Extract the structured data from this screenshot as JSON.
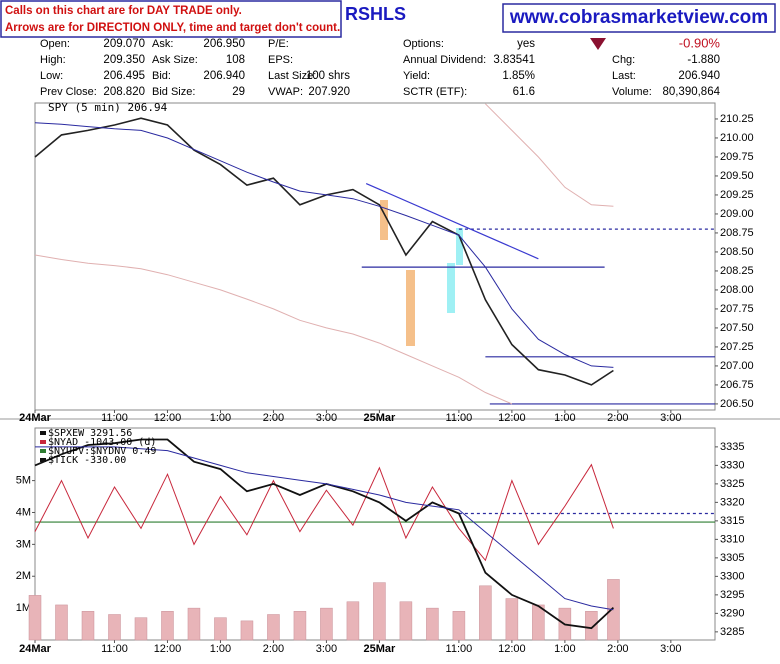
{
  "banner": {
    "notice": [
      "Calls on this chart are for DAY TRADE only.",
      "Arrows are for DIRECTION ONLY, time and target don't count."
    ],
    "symbol": "RSHLS",
    "site": "www.cobrasmarketview.com"
  },
  "quote": {
    "columns": [
      [
        {
          "label": "Open:",
          "value": "209.070"
        },
        {
          "label": "High:",
          "value": "209.350"
        },
        {
          "label": "Low:",
          "value": "206.495"
        },
        {
          "label": "Prev Close:",
          "value": "208.820"
        }
      ],
      [
        {
          "label": "Ask:",
          "value": "206.950"
        },
        {
          "label": "Ask Size:",
          "value": "108"
        },
        {
          "label": "Bid:",
          "value": "206.940"
        },
        {
          "label": "Bid Size:",
          "value": "29"
        }
      ],
      [
        {
          "label": "P/E:"
        },
        {
          "label": "EPS:"
        },
        {
          "label": "Last Size:",
          "value": "100 shrs"
        },
        {
          "label": "VWAP:",
          "value": "207.920"
        }
      ],
      [
        {
          "label": "Options:",
          "value": "yes"
        },
        {
          "label": "Annual Dividend:",
          "value": "3.83541"
        },
        {
          "label": "Yield:",
          "value": "1.85%"
        },
        {
          "label": "SCTR (ETF):",
          "value": "61.6"
        }
      ],
      [
        {
          "value": "-0.90%"
        },
        {
          "label": "Chg:",
          "value": "-1.880"
        },
        {
          "label": "Last:",
          "value": "206.940"
        },
        {
          "label": "Volume:",
          "value": "80,390,864"
        }
      ]
    ]
  },
  "chart_data": [
    {
      "type": "line",
      "title": "SPY (5 min) 206.94",
      "x": [
        0,
        6,
        12,
        18,
        24,
        30,
        36,
        42,
        48,
        54,
        60,
        66,
        72,
        78,
        84,
        90,
        96,
        102,
        108,
        114,
        120,
        126,
        131
      ],
      "xlim": [
        0,
        154
      ],
      "xticks": [
        {
          "value": 0,
          "label": "24Mar"
        },
        {
          "value": 18,
          "label": "11:00"
        },
        {
          "value": 30,
          "label": "12:00"
        },
        {
          "value": 42,
          "label": "1:00"
        },
        {
          "value": 54,
          "label": "2:00"
        },
        {
          "value": 66,
          "label": "3:00"
        },
        {
          "value": 78,
          "label": "25Mar"
        },
        {
          "value": 96,
          "label": "11:00"
        },
        {
          "value": 108,
          "label": "12:00"
        },
        {
          "value": 120,
          "label": "1:00"
        },
        {
          "value": 132,
          "label": "2:00"
        },
        {
          "value": 144,
          "label": "3:00"
        }
      ],
      "ylim": [
        206.42,
        210.46
      ],
      "yticks": [
        {
          "value": 206.5,
          "label": "206.50"
        },
        206.75,
        {
          "value": 207,
          "label": "207.00"
        },
        207.25,
        {
          "value": 207.5,
          "label": "207.50"
        },
        207.75,
        {
          "value": 208,
          "label": "208.00"
        },
        208.25,
        {
          "value": 208.5,
          "label": "208.50"
        },
        208.75,
        {
          "value": 209,
          "label": "209.00"
        },
        209.25,
        {
          "value": 209.5,
          "label": "209.50"
        },
        209.75,
        {
          "value": 210,
          "label": "210.00"
        },
        210.25
      ],
      "series": [
        {
          "color": "#222222",
          "width": 1.6,
          "values": [
            209.75,
            210.04,
            210.1,
            210.17,
            210.26,
            210.17,
            209.84,
            209.65,
            209.38,
            209.47,
            209.12,
            209.25,
            209.32,
            209.12,
            208.46,
            208.9,
            208.72,
            207.87,
            207.28,
            206.95,
            206.88,
            206.75,
            206.94
          ]
        },
        {
          "color": "#2a2aa0",
          "width": 1,
          "values": [
            210.2,
            210.18,
            210.15,
            210.12,
            210.1,
            210.0,
            209.85,
            209.7,
            209.55,
            209.42,
            209.3,
            209.25,
            209.2,
            209.1,
            208.98,
            208.85,
            208.72,
            208.3,
            207.75,
            207.35,
            207.15,
            207.0,
            206.98
          ]
        },
        {
          "color": "#e0b0b0",
          "width": 1,
          "values": [
            208.46,
            208.4,
            208.35,
            208.32,
            208.28,
            208.2,
            208.1,
            208.0,
            207.88,
            207.75,
            207.6,
            207.5,
            207.42,
            207.3,
            207.15,
            207.0,
            206.85,
            206.65,
            206.5,
            null,
            null,
            null,
            null
          ]
        },
        {
          "color": "#e0b0b0",
          "width": 1,
          "values": [
            null,
            null,
            null,
            null,
            null,
            null,
            null,
            null,
            null,
            null,
            null,
            null,
            null,
            null,
            null,
            null,
            null,
            210.45,
            210.1,
            209.75,
            209.35,
            209.12,
            209.1
          ]
        }
      ],
      "levels": [
        {
          "value": 208.8,
          "from": 96,
          "to": 154,
          "color": "#2a2aa0",
          "dashed": true
        },
        {
          "value": 208.3,
          "from": 74,
          "to": 129,
          "color": "#2a2aa0"
        },
        {
          "value": 207.12,
          "from": 102,
          "to": 154,
          "color": "#2a2aa0"
        },
        {
          "value": 206.5,
          "from": 103,
          "to": 154,
          "color": "#2a2aa0"
        }
      ],
      "trendline": {
        "x": [
          75,
          114
        ],
        "y": [
          209.4,
          208.41
        ],
        "color": "#3a3ad0"
      }
    },
    {
      "type": "line",
      "legend": [
        "$SPXEW 3291.56",
        "$NYAD -1043.00 (d)",
        "$NYUPV:$NYDNV 0.49",
        "$TICK -330.00"
      ],
      "x": [
        0,
        6,
        12,
        18,
        24,
        30,
        36,
        42,
        48,
        54,
        60,
        66,
        72,
        78,
        84,
        90,
        96,
        102,
        108,
        114,
        120,
        126,
        131
      ],
      "xlim": [
        0,
        154
      ],
      "xticks": [
        {
          "value": 0,
          "label": "24Mar"
        },
        {
          "value": 18,
          "label": "11:00"
        },
        {
          "value": 30,
          "label": "12:00"
        },
        {
          "value": 42,
          "label": "1:00"
        },
        {
          "value": 54,
          "label": "2:00"
        },
        {
          "value": 66,
          "label": "3:00"
        },
        {
          "value": 78,
          "label": "25Mar"
        },
        {
          "value": 96,
          "label": "11:00"
        },
        {
          "value": 108,
          "label": "12:00"
        },
        {
          "value": 120,
          "label": "1:00"
        },
        {
          "value": 132,
          "label": "2:00"
        },
        {
          "value": 144,
          "label": "3:00"
        }
      ],
      "ylim": [
        0,
        6650000
      ],
      "yticks": [
        {
          "value": 1000000,
          "label": "1M"
        },
        {
          "value": 2000000,
          "label": "2M"
        },
        {
          "value": 3000000,
          "label": "3M"
        },
        {
          "value": 4000000,
          "label": "4M"
        },
        {
          "value": 5000000,
          "label": "5M"
        }
      ],
      "y2lim": [
        3282.8,
        3340.1
      ],
      "y2ticks": [
        3285,
        3290,
        3295,
        3300,
        3305,
        3310,
        3315,
        3320,
        3325,
        3330,
        3335
      ],
      "series": [
        {
          "type": "bar",
          "color": "#e8b4b8",
          "values": [
            1400000,
            1100000,
            900000,
            800000,
            700000,
            900000,
            1000000,
            700000,
            600000,
            800000,
            900000,
            1000000,
            1200000,
            1800000,
            1200000,
            1000000,
            900000,
            1700000,
            1300000,
            1100000,
            1000000,
            900000,
            1900000
          ]
        },
        {
          "color": "#c8283c",
          "width": 1,
          "values": [
            3400000,
            5000000,
            3200000,
            4800000,
            3500000,
            5200000,
            3000000,
            4500000,
            3300000,
            5000000,
            3400000,
            4700000,
            3600000,
            5400000,
            3200000,
            4800000,
            3500000,
            2500000,
            5000000,
            3000000,
            4200000,
            5500000,
            3500000
          ]
        },
        {
          "axis": "y2",
          "color": "#111111",
          "width": 1.8,
          "values": [
            3330,
            3333,
            3335.5,
            3336,
            3337,
            3337,
            3331,
            3329,
            3323,
            3325,
            3322,
            3325,
            3323,
            3320,
            3315,
            3320,
            3317,
            3301,
            3295,
            3292,
            3287,
            3286,
            3291.56
          ]
        },
        {
          "axis": "y2",
          "color": "#2a2aa0",
          "width": 1,
          "values": [
            3335,
            3335,
            3335,
            3335,
            3334.5,
            3334,
            3332,
            3330,
            3328,
            3327,
            3326,
            3325,
            3323.5,
            3322,
            3320,
            3319,
            3318,
            3312,
            3306,
            3300,
            3294,
            3292,
            3291
          ]
        }
      ],
      "levels": [
        {
          "value": 3700000,
          "from": 0,
          "to": 154,
          "color": "#2e7d32"
        },
        {
          "value": 3317,
          "axis": "y2",
          "from": 96,
          "to": 154,
          "color": "#2a2aa0",
          "dashed": true
        }
      ]
    }
  ]
}
